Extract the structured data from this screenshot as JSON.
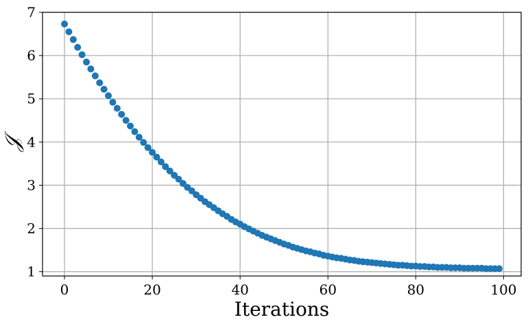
{
  "chart_data": {
    "type": "scatter",
    "title": "",
    "xlabel": "Iterations",
    "ylabel": "𝒥",
    "xlim": [
      -5,
      104
    ],
    "ylim": [
      0.9,
      7.0
    ],
    "xticks": [
      0,
      20,
      40,
      60,
      80,
      100
    ],
    "yticks": [
      1,
      2,
      3,
      4,
      5,
      6,
      7
    ],
    "grid": true,
    "legend": "none",
    "marker_color": "#1f77b4",
    "x": [
      0,
      1,
      2,
      3,
      4,
      5,
      6,
      7,
      8,
      9,
      10,
      11,
      12,
      13,
      14,
      15,
      16,
      17,
      18,
      19,
      20,
      21,
      22,
      23,
      24,
      25,
      26,
      27,
      28,
      29,
      30,
      31,
      32,
      33,
      34,
      35,
      36,
      37,
      38,
      39,
      40,
      41,
      42,
      43,
      44,
      45,
      46,
      47,
      48,
      49,
      50,
      51,
      52,
      53,
      54,
      55,
      56,
      57,
      58,
      59,
      60,
      61,
      62,
      63,
      64,
      65,
      66,
      67,
      68,
      69,
      70,
      71,
      72,
      73,
      74,
      75,
      76,
      77,
      78,
      79,
      80,
      81,
      82,
      83,
      84,
      85,
      86,
      87,
      88,
      89,
      90,
      91,
      92,
      93,
      94,
      95,
      96,
      97,
      98,
      99
    ],
    "y": [
      6.73,
      6.55,
      6.37,
      6.19,
      6.02,
      5.85,
      5.69,
      5.53,
      5.37,
      5.22,
      5.07,
      4.92,
      4.78,
      4.64,
      4.5,
      4.37,
      4.24,
      4.11,
      3.99,
      3.87,
      3.76,
      3.65,
      3.54,
      3.43,
      3.33,
      3.23,
      3.14,
      3.04,
      2.95,
      2.87,
      2.78,
      2.7,
      2.62,
      2.55,
      2.48,
      2.41,
      2.34,
      2.28,
      2.21,
      2.15,
      2.1,
      2.04,
      1.99,
      1.94,
      1.89,
      1.84,
      1.8,
      1.76,
      1.72,
      1.68,
      1.64,
      1.61,
      1.57,
      1.54,
      1.51,
      1.48,
      1.46,
      1.43,
      1.41,
      1.38,
      1.36,
      1.34,
      1.32,
      1.31,
      1.29,
      1.27,
      1.26,
      1.24,
      1.23,
      1.22,
      1.21,
      1.2,
      1.19,
      1.18,
      1.17,
      1.16,
      1.15,
      1.15,
      1.14,
      1.13,
      1.13,
      1.12,
      1.12,
      1.11,
      1.11,
      1.1,
      1.1,
      1.1,
      1.09,
      1.09,
      1.09,
      1.08,
      1.08,
      1.08,
      1.08,
      1.08,
      1.07,
      1.07,
      1.07,
      1.07
    ]
  }
}
